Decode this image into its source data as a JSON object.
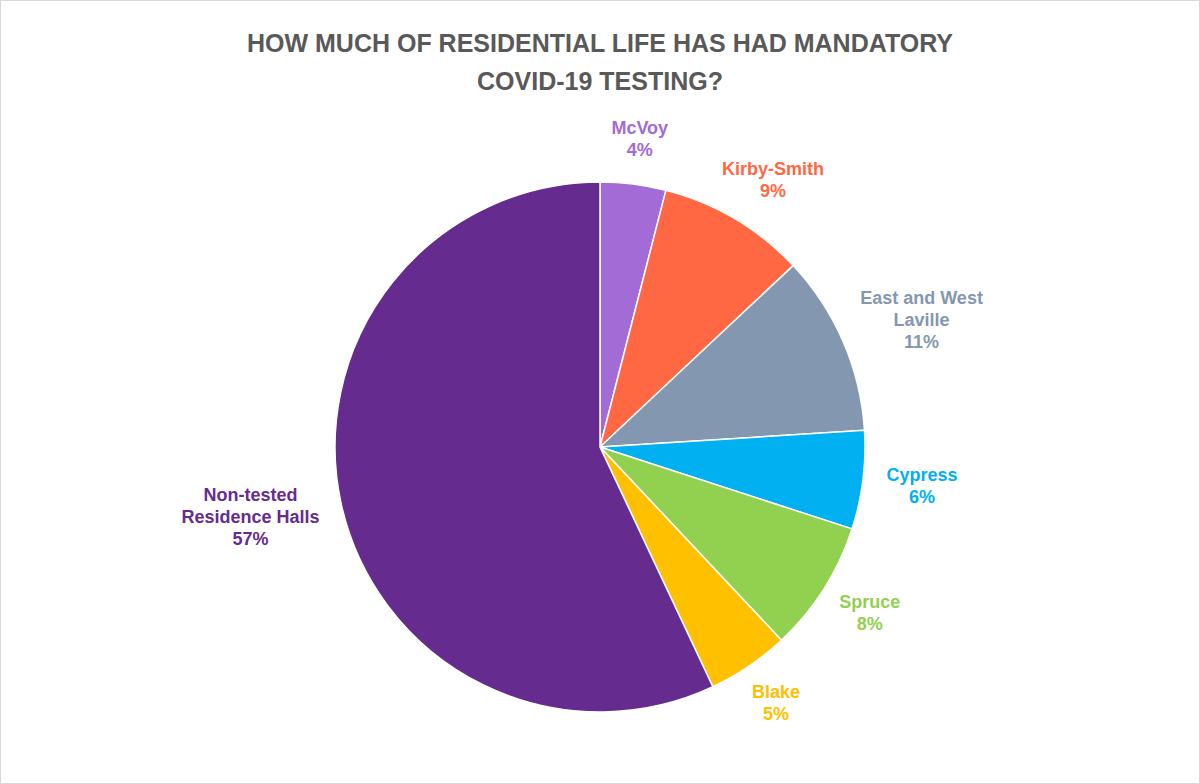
{
  "chart_data": {
    "type": "pie",
    "title": "HOW MUCH OF RESIDENTIAL LIFE HAS HAD MANDATORY COVID-19 TESTING?",
    "categories": [
      "McVoy",
      "Kirby-Smith",
      "East and West Laville",
      "Cypress",
      "Spruce",
      "Blake",
      "Non-tested Residence Halls"
    ],
    "values": [
      4,
      9,
      11,
      6,
      8,
      5,
      57
    ],
    "value_labels": [
      "4%",
      "9%",
      "11%",
      "6%",
      "8%",
      "5%",
      "57%"
    ],
    "colors": [
      "#a36bd6",
      "#ff6842",
      "#8497b0",
      "#00b0f0",
      "#92d050",
      "#ffc000",
      "#662b8e"
    ],
    "data_labels": true
  }
}
